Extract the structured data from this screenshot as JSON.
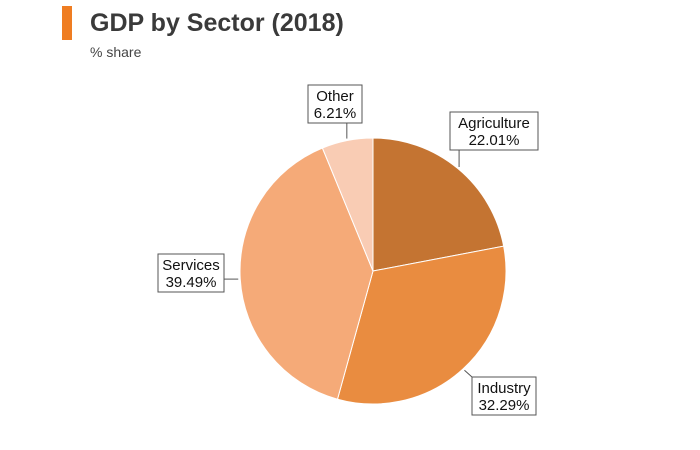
{
  "header": {
    "title": "GDP by Sector (2018)",
    "subtitle": "% share",
    "accent_color": "#ef7d22"
  },
  "chart_data": {
    "type": "pie",
    "title": "GDP by Sector (2018)",
    "subtitle": "% share",
    "unit": "%",
    "start_angle_deg": 0,
    "direction": "clockwise",
    "slices": [
      {
        "name": "Agriculture",
        "value": 22.01,
        "label": "22.01%",
        "color": "#c47432"
      },
      {
        "name": "Industry",
        "value": 32.29,
        "label": "32.29%",
        "color": "#e98c40"
      },
      {
        "name": "Services",
        "value": 39.49,
        "label": "39.49%",
        "color": "#f5aa78"
      },
      {
        "name": "Other",
        "value": 6.21,
        "label": "6.21%",
        "color": "#f9ccb4"
      }
    ]
  }
}
